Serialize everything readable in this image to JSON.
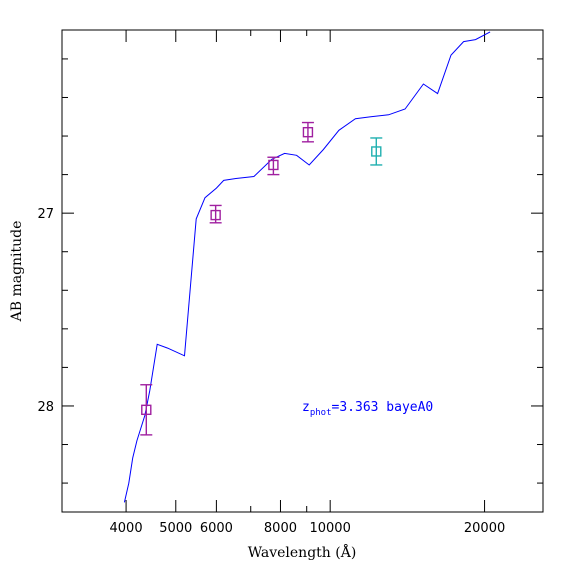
{
  "chart_data": {
    "type": "scatter",
    "title": "",
    "xlabel": "Wavelength (Å)",
    "ylabel": "AB magnitude",
    "x_scale": "log",
    "xlim": [
      3000,
      26000
    ],
    "ylim": [
      28.55,
      26.05
    ],
    "y_inverted": true,
    "x_tick_labels": [
      "4000",
      "5000",
      "6000",
      "8000",
      "10000",
      "20000"
    ],
    "x_tick_values": [
      4000,
      5000,
      6000,
      8000,
      10000,
      20000
    ],
    "x_minor_ticks": [
      3000,
      7000,
      9000
    ],
    "y_tick_labels": [
      "27",
      "28"
    ],
    "y_tick_values": [
      27,
      28
    ],
    "y_minor_ticks": [
      26.2,
      26.4,
      26.6,
      26.8,
      27.2,
      27.4,
      27.6,
      27.8,
      28.2,
      28.4
    ],
    "annotation": {
      "base": "z",
      "subscript": "phot",
      "text": "=3.363 bayeA0",
      "color": "#0000ff"
    },
    "series": [
      {
        "kind": "line",
        "color": "#0000ff",
        "points": [
          [
            3970,
            28.5
          ],
          [
            4050,
            28.4
          ],
          [
            4120,
            28.27
          ],
          [
            4200,
            28.18
          ],
          [
            4350,
            28.05
          ],
          [
            4450,
            27.92
          ],
          [
            4600,
            27.68
          ],
          [
            4820,
            27.7
          ],
          [
            5200,
            27.74
          ],
          [
            5480,
            27.03
          ],
          [
            5700,
            26.92
          ],
          [
            6000,
            26.87
          ],
          [
            6200,
            26.83
          ],
          [
            6550,
            26.82
          ],
          [
            7100,
            26.81
          ],
          [
            7700,
            26.72
          ],
          [
            8150,
            26.69
          ],
          [
            8600,
            26.7
          ],
          [
            9100,
            26.75
          ],
          [
            9700,
            26.67
          ],
          [
            10400,
            26.57
          ],
          [
            11200,
            26.51
          ],
          [
            12000,
            26.5
          ],
          [
            13000,
            26.49
          ],
          [
            14000,
            26.46
          ],
          [
            15200,
            26.33
          ],
          [
            16200,
            26.38
          ],
          [
            17200,
            26.18
          ],
          [
            18200,
            26.11
          ],
          [
            19200,
            26.1
          ],
          [
            20500,
            26.06
          ]
        ]
      },
      {
        "kind": "points",
        "color": "#a020a0",
        "points": [
          {
            "x": 4380,
            "y": 28.02,
            "err_lo": 28.15,
            "err_hi": 27.89
          },
          {
            "x": 5980,
            "y": 27.01,
            "err_lo": 27.05,
            "err_hi": 26.96
          },
          {
            "x": 7750,
            "y": 26.75,
            "err_lo": 26.8,
            "err_hi": 26.71
          },
          {
            "x": 9050,
            "y": 26.58,
            "err_lo": 26.63,
            "err_hi": 26.53
          }
        ]
      },
      {
        "kind": "points",
        "color": "#20b0b0",
        "points": [
          {
            "x": 12300,
            "y": 26.68,
            "err_lo": 26.75,
            "err_hi": 26.61
          }
        ]
      }
    ]
  }
}
